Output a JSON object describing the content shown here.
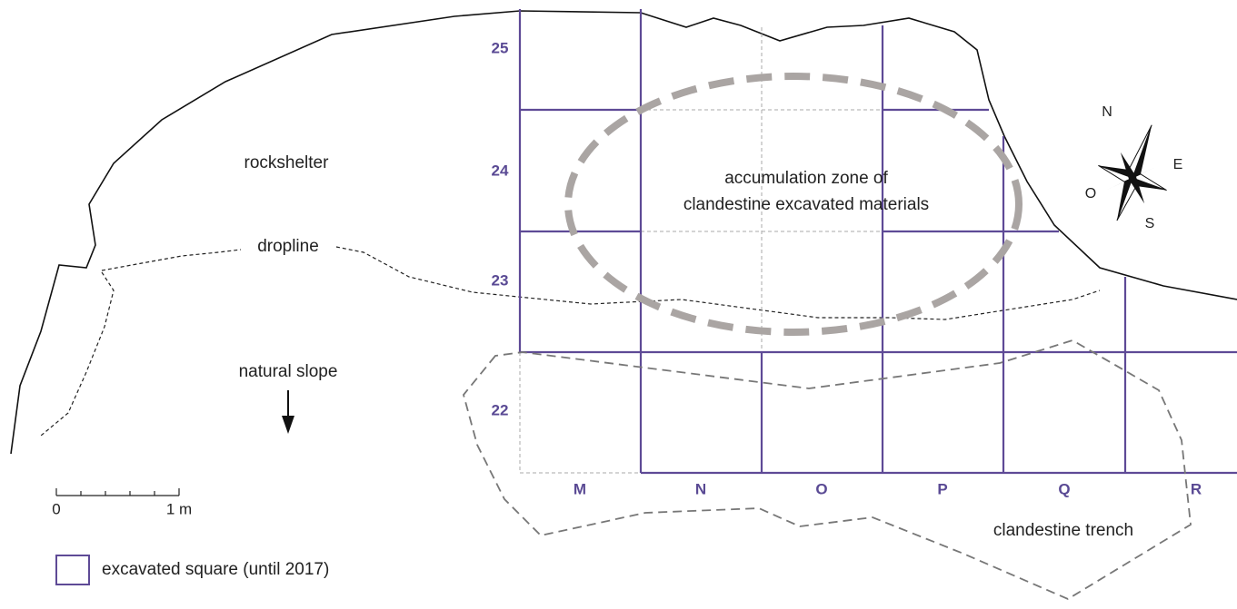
{
  "labels": {
    "rockshelter": "rockshelter",
    "dropline": "dropline",
    "natural_slope": "natural slope",
    "accumulation": [
      "accumulation zone of",
      "clandestine excavated materials"
    ],
    "trench": "clandestine trench"
  },
  "rows": [
    "25",
    "24",
    "23",
    "22"
  ],
  "columns": [
    "M",
    "N",
    "O",
    "P",
    "Q",
    "R"
  ],
  "compass": {
    "n": "N",
    "e": "E",
    "s": "S",
    "o": "O"
  },
  "scale": {
    "start": "0",
    "end": "1 m"
  },
  "legend": "excavated square (until 2017)"
}
